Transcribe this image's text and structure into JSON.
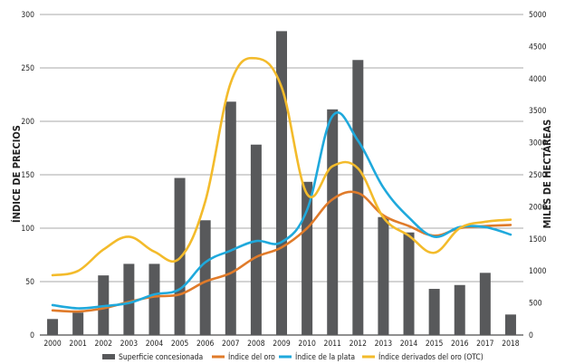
{
  "chart_data": {
    "type": "bar+line",
    "title": "",
    "xlabel": "",
    "ylabel_left": "ÍNDICE DE PRECIOS",
    "ylabel_right": "MILES DE HECTÁREAS",
    "categories": [
      "2000",
      "2001",
      "2002",
      "2003",
      "2004",
      "2005",
      "2006",
      "2007",
      "2008",
      "2009",
      "2010",
      "2011",
      "2012",
      "2013",
      "2014",
      "2015",
      "2016",
      "2017",
      "2018"
    ],
    "ylim_left": [
      0,
      300
    ],
    "yticks_left": [
      0,
      50,
      100,
      150,
      200,
      250,
      300
    ],
    "ylim_right": [
      0,
      5000
    ],
    "yticks_right": [
      0,
      500,
      1000,
      1500,
      2000,
      2500,
      3000,
      3500,
      4000,
      4500,
      5000
    ],
    "grid": "horizontal",
    "legend_position": "bottom",
    "bars": {
      "name": "Superficie concesionada",
      "axis": "right",
      "color": "#58595b",
      "values": [
        250,
        350,
        930,
        1110,
        1110,
        2450,
        1790,
        3640,
        2970,
        4740,
        2390,
        3520,
        4290,
        1840,
        1600,
        720,
        780,
        970,
        320
      ]
    },
    "series": [
      {
        "name": "Índice del oro",
        "axis": "left",
        "color": "#e07b2a",
        "values": [
          23,
          22,
          25,
          31,
          36,
          38,
          50,
          58,
          73,
          82,
          100,
          127,
          133,
          112,
          102,
          93,
          100,
          102,
          103
        ]
      },
      {
        "name": "Índice de la plata",
        "axis": "left",
        "color": "#1fa9dc",
        "values": [
          28,
          25,
          27,
          30,
          38,
          43,
          68,
          79,
          88,
          87,
          117,
          205,
          182,
          138,
          110,
          92,
          101,
          101,
          94
        ]
      },
      {
        "name": "Índice derivados del oro (OTC)",
        "axis": "left",
        "color": "#f3bb2b",
        "values": [
          56,
          60,
          80,
          92,
          78,
          72,
          125,
          236,
          259,
          232,
          132,
          158,
          156,
          110,
          93,
          77,
          100,
          106,
          108
        ]
      }
    ]
  }
}
